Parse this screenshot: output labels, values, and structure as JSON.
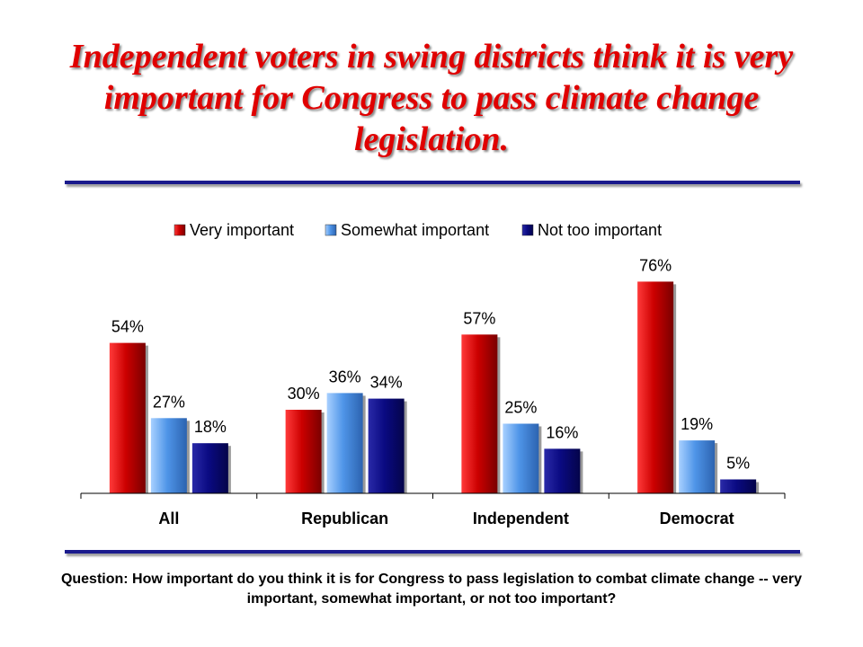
{
  "title": "Independent voters in swing districts think it is very important for Congress to pass climate change legislation.",
  "question": "Question: How important do you think it is for Congress to pass legislation to combat climate change -- very important, somewhat important, or not too important?",
  "colors": {
    "title": "#e00000",
    "very_important": "#cc0000",
    "somewhat_important": "#4f95e8",
    "not_too_important": "#0a0a82",
    "rule": "#1a1a8c"
  },
  "chart_data": {
    "type": "bar",
    "categories": [
      "All",
      "Republican",
      "Independent",
      "Democrat"
    ],
    "series": [
      {
        "name": "Very important",
        "values": [
          54,
          30,
          57,
          76
        ],
        "labels": [
          "54%",
          "30%",
          "57%",
          "76%"
        ]
      },
      {
        "name": "Somewhat important",
        "values": [
          27,
          36,
          25,
          19
        ],
        "labels": [
          "27%",
          "36%",
          "25%",
          "19%"
        ]
      },
      {
        "name": "Not too important",
        "values": [
          18,
          34,
          16,
          5
        ],
        "labels": [
          "18%",
          "34%",
          "16%",
          "5%"
        ]
      }
    ],
    "ylim": [
      0,
      80
    ],
    "legend_position": "top",
    "grid": false
  }
}
